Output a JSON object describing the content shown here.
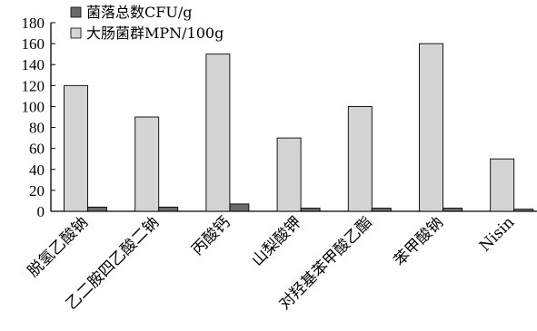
{
  "chart_data": {
    "type": "bar",
    "categories": [
      "脱氢乙酸钠",
      "乙二胺四乙酸二钠",
      "丙酸钙",
      "山梨酸钾",
      "对羟基苯甲酸乙酯",
      "苯甲酸钠",
      "Nisin"
    ],
    "series": [
      {
        "name": "菌落总数CFU/g",
        "values": [
          4,
          4,
          7,
          3,
          3,
          3,
          2
        ],
        "color": "#6a6a6a"
      },
      {
        "name": "大肠菌群MPN/100g",
        "values": [
          120,
          90,
          150,
          70,
          100,
          160,
          50
        ],
        "color": "#d4d4d4"
      }
    ],
    "ylim": [
      0,
      180
    ],
    "yticks": [
      0,
      20,
      40,
      60,
      80,
      100,
      120,
      140,
      160,
      180
    ],
    "legend_position": "top-left",
    "grid": false,
    "title": "",
    "xlabel": "",
    "ylabel": ""
  }
}
